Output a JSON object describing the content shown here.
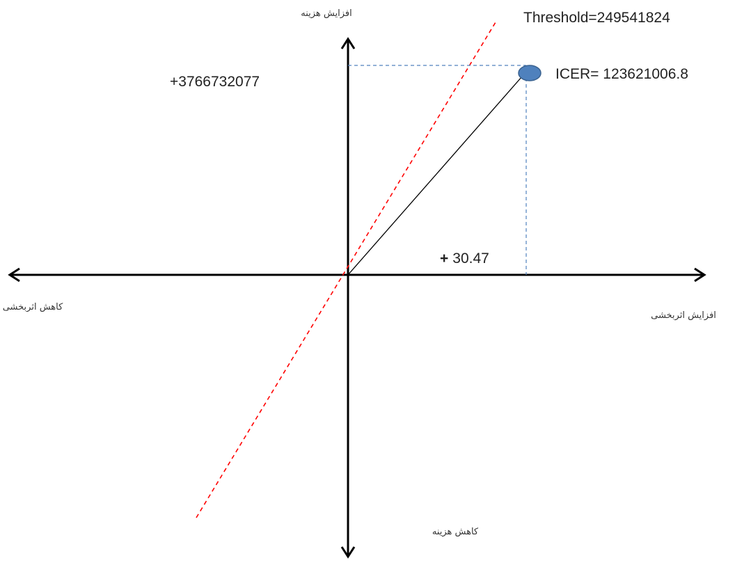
{
  "chart_data": {
    "type": "scatter",
    "title": "",
    "axes": {
      "x_positive_label": "افزایش اثربخشی",
      "x_negative_label": "کاهش اثربخشی",
      "y_positive_label": "افزایش هزینه",
      "y_negative_label": "کاهش هزینه"
    },
    "point": {
      "x": 30.47,
      "y": 3766732077,
      "label": "ICER= 123621006.8"
    },
    "x_value_label": {
      "sign": "+",
      "value": "30.47"
    },
    "y_value_label": "+3766732077",
    "threshold": {
      "label": "Threshold=249541824",
      "value": 249541824
    },
    "colors": {
      "axis": "#000000",
      "point_fill": "#4f81bd",
      "point_stroke": "#3a6290",
      "threshold_line": "#ff0000",
      "guide_lines": "#4f81bd",
      "icer_line": "#000000"
    }
  }
}
